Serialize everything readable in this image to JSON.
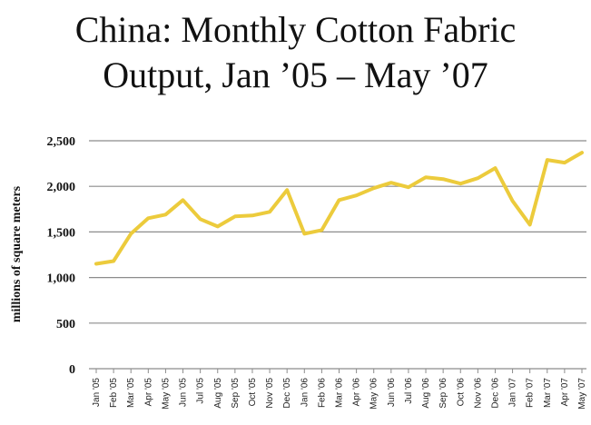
{
  "chart_data": {
    "type": "line",
    "title_line1": "China:  Monthly Cotton Fabric",
    "title_line2": "Output, Jan ’05 – May ’07",
    "ylabel": "millions of square meters",
    "xlabel": "",
    "ylim": [
      0,
      2500
    ],
    "yticks": [
      0,
      500,
      1000,
      1500,
      2000,
      2500
    ],
    "ytick_labels": [
      "0",
      "500",
      "1,000",
      "1,500",
      "2,000",
      "2,500"
    ],
    "grid": true,
    "line_color": "#ECCB3C",
    "categories": [
      "Jan '05",
      "Feb '05",
      "Mar '05",
      "Apr '05",
      "May '05",
      "Jun '05",
      "Jul '05",
      "Aug '05",
      "Sep '05",
      "Oct '05",
      "Nov '05",
      "Dec '05",
      "Jan '06",
      "Feb '06",
      "Mar '06",
      "Apr '06",
      "May '06",
      "Jun '06",
      "Jul '06",
      "Aug '06",
      "Sep '06",
      "Oct '06",
      "Nov '06",
      "Dec '06",
      "Jan '07",
      "Feb '07",
      "Mar '07",
      "Apr '07",
      "May '07"
    ],
    "values": [
      1150,
      1180,
      1480,
      1650,
      1690,
      1850,
      1640,
      1560,
      1670,
      1680,
      1720,
      1960,
      1480,
      1520,
      1850,
      1900,
      1980,
      2040,
      1990,
      2100,
      2080,
      2030,
      2090,
      2200,
      1840,
      1580,
      2290,
      2260,
      2370
    ]
  }
}
